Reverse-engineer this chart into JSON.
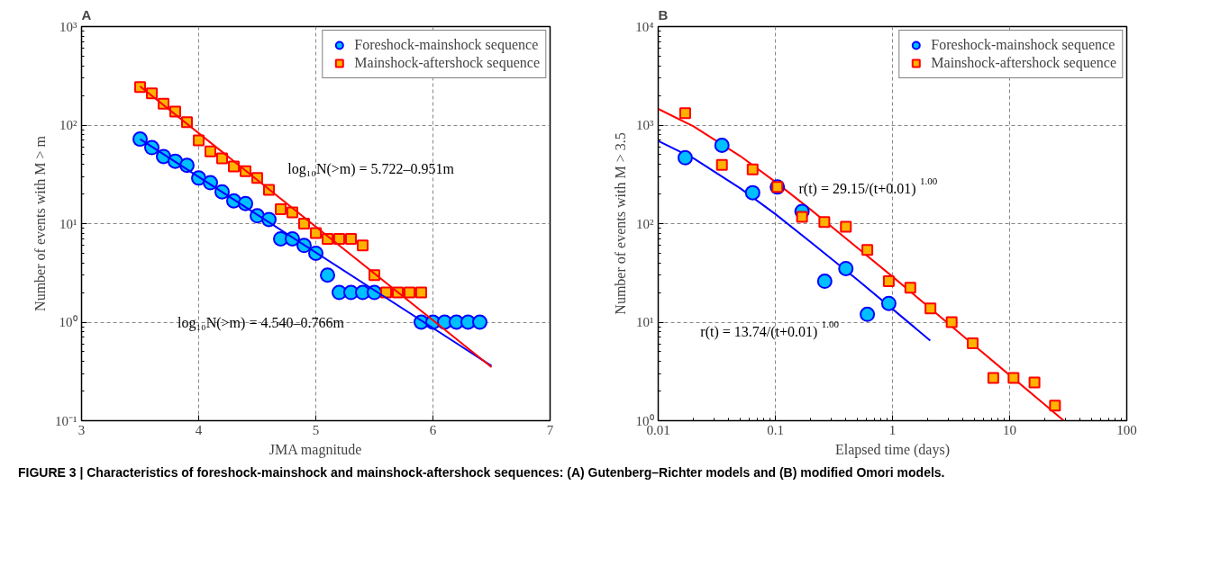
{
  "chart_data": [
    {
      "type": "scatter",
      "title": "A",
      "xlabel": "JMA magnitude",
      "ylabel": "Number of events with M > m",
      "log": "y",
      "xlim": [
        3,
        7
      ],
      "ylim": [
        0.1,
        1000
      ],
      "xticks": [
        3,
        4,
        5,
        6,
        7
      ],
      "yticks": [
        {
          "value": 0.1,
          "label": "10⁻¹"
        },
        {
          "value": 1,
          "label": "10⁰"
        },
        {
          "value": 10,
          "label": "10¹"
        },
        {
          "value": 100,
          "label": "10²"
        },
        {
          "value": 1000,
          "label": "10³"
        }
      ],
      "grid": true,
      "legend": "top right",
      "series": [
        {
          "name": "Foreshock-mainshock sequence",
          "color": "#00bfff",
          "marker": "circle",
          "x": [
            3.5,
            3.6,
            3.7,
            3.8,
            3.9,
            4.0,
            4.1,
            4.2,
            4.3,
            4.4,
            4.5,
            4.6,
            4.7,
            4.8,
            4.9,
            5.0,
            5.1,
            5.2,
            5.3,
            5.4,
            5.5,
            5.9,
            6.0,
            6.1,
            6.2,
            6.3,
            6.4
          ],
          "values": [
            72,
            59,
            48,
            43,
            39,
            29,
            26,
            21,
            17,
            16,
            12,
            11,
            7,
            7,
            6,
            5,
            3,
            2,
            2,
            2,
            2,
            1,
            1,
            1,
            1,
            1,
            1
          ]
        },
        {
          "name": "Mainshock-aftershock sequence",
          "color": "#ffb300",
          "marker": "square",
          "x": [
            3.5,
            3.6,
            3.7,
            3.8,
            3.9,
            4.0,
            4.1,
            4.2,
            4.3,
            4.4,
            4.5,
            4.6,
            4.7,
            4.8,
            4.9,
            5.0,
            5.1,
            5.2,
            5.3,
            5.4,
            5.5,
            5.6,
            5.7,
            5.8,
            5.9
          ],
          "values": [
            243,
            210,
            165,
            137,
            107,
            70,
            54,
            46,
            38,
            34,
            29,
            22,
            14,
            13,
            10,
            8,
            7,
            7,
            7,
            6,
            3,
            2,
            2,
            2,
            2
          ]
        },
        {
          "type": "line",
          "color": "#0000ff",
          "x": [
            3.5,
            6.5
          ],
          "values": [
            72,
            0.36
          ]
        },
        {
          "type": "line",
          "color": "#ff0000",
          "x": [
            3.5,
            6.5
          ],
          "values": [
            247,
            0.35
          ]
        }
      ],
      "annotations": [
        "log₁₀N(>m) = 5.722–0.951m",
        "log₁₀N(>m) = 4.540–0.766m",
        "FIGURE 3 | Characteristics of foreshock-mainshock and mainshock-aftershock sequences: (A) Gutenberg–Richter models and (B) modified Omori models."
      ]
    },
    {
      "type": "scatter",
      "title": "B",
      "xlabel": "Elapsed time (days)",
      "ylabel": "Number of events with M > 3.5",
      "log": "xy",
      "xlim": [
        0.01,
        100
      ],
      "ylim": [
        1,
        10000
      ],
      "xticks": [
        0.01,
        0.1,
        1,
        10,
        100
      ],
      "yticks": [
        {
          "value": 1,
          "label": "10⁰"
        },
        {
          "value": 10,
          "label": "10¹"
        },
        {
          "value": 100,
          "label": "10²"
        },
        {
          "value": 1000,
          "label": "10³"
        },
        {
          "value": 10000,
          "label": "10⁴"
        }
      ],
      "grid": true,
      "legend": "top right",
      "series": [
        {
          "type": "line",
          "color": "#0000ff",
          "x": [
            0.01,
            0.02,
            0.05,
            0.1,
            0.2,
            0.5,
            1,
            2.1
          ],
          "values": [
            690,
            460,
            229,
            125,
            65,
            27,
            13.6,
            6.5
          ]
        },
        {
          "type": "line",
          "color": "#ff0000",
          "x": [
            0.01,
            0.02,
            0.05,
            0.1,
            0.2,
            0.5,
            1,
            2,
            5,
            10,
            20,
            29
          ],
          "values": [
            1460,
            970,
            486,
            265,
            139,
            57,
            29,
            14.5,
            5.8,
            2.9,
            1.45,
            1.0
          ]
        },
        {
          "name": "Foreshock-mainshock sequence",
          "color": "#00bfff",
          "marker": "circle",
          "x": [
            0.017,
            0.035,
            0.064,
            0.104,
            0.169,
            0.264,
            0.4,
            0.61,
            0.93
          ],
          "values": [
            466,
            623,
            206,
            235,
            133,
            26,
            35,
            12,
            15.5
          ]
        },
        {
          "name": "Mainshock-aftershock sequence",
          "color": "#ffb300",
          "marker": "square",
          "x": [
            0.017,
            0.035,
            0.064,
            0.104,
            0.169,
            0.262,
            0.4,
            0.61,
            0.93,
            1.42,
            2.11,
            3.2,
            4.84,
            7.26,
            10.8,
            16.3,
            24.4
          ],
          "values": [
            1322,
            394,
            355,
            235,
            117,
            104,
            93,
            54,
            26,
            22.4,
            13.8,
            10,
            6.1,
            2.72,
            2.72,
            2.44,
            1.42
          ]
        }
      ],
      "annotations": [
        "r(t) = 29.15/(t+0.01)$^{1.00}$",
        "r(t) = 13.74/(t+0.01)$^{1.00}$"
      ]
    }
  ]
}
